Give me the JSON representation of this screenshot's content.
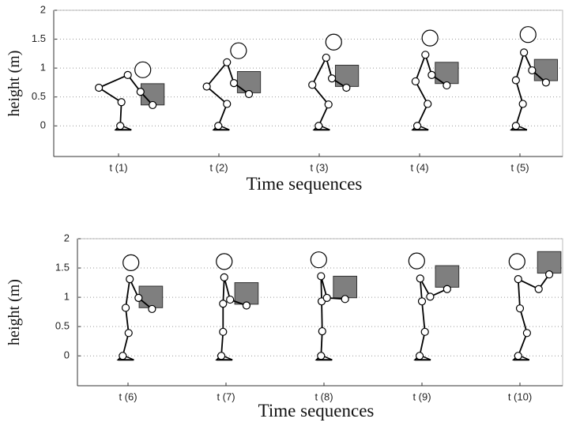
{
  "chart_data": [
    {
      "type": "pose",
      "ylabel": "height (m)",
      "xlabel": "Time sequences",
      "categories": [
        "t (1)",
        "t (2)",
        "t (3)",
        "t (4)",
        "t (5)"
      ],
      "ylim": [
        -0.53,
        2
      ],
      "yticks": [
        0,
        0.5,
        1,
        1.5,
        2
      ],
      "grid": true,
      "figures": [
        {
          "ankle": [
            0.03,
            0
          ],
          "knee": [
            0.05,
            0.41
          ],
          "hip": [
            -0.34,
            0.66
          ],
          "shoulder": [
            0.16,
            0.88
          ],
          "elbow": [
            0.38,
            0.59
          ],
          "hand": [
            0.59,
            0.36
          ],
          "head": [
            0.42,
            0.97
          ],
          "box": [
            0.59,
            0.53
          ]
        },
        {
          "ankle": [
            -0.01,
            0
          ],
          "knee": [
            0.14,
            0.38
          ],
          "hip": [
            -0.21,
            0.68
          ],
          "shoulder": [
            0.14,
            1.1
          ],
          "elbow": [
            0.26,
            0.74
          ],
          "hand": [
            0.52,
            0.55
          ],
          "head": [
            0.34,
            1.3
          ],
          "box": [
            0.52,
            0.74
          ]
        },
        {
          "ankle": [
            -0.01,
            0
          ],
          "knee": [
            0.16,
            0.37
          ],
          "hip": [
            -0.12,
            0.71
          ],
          "shoulder": [
            0.12,
            1.18
          ],
          "elbow": [
            0.22,
            0.82
          ],
          "hand": [
            0.47,
            0.66
          ],
          "head": [
            0.25,
            1.45
          ],
          "box": [
            0.48,
            0.85
          ]
        },
        {
          "ankle": [
            -0.04,
            0
          ],
          "knee": [
            0.14,
            0.38
          ],
          "hip": [
            -0.07,
            0.77
          ],
          "shoulder": [
            0.1,
            1.23
          ],
          "elbow": [
            0.21,
            0.88
          ],
          "hand": [
            0.47,
            0.7
          ],
          "head": [
            0.18,
            1.52
          ],
          "box": [
            0.47,
            0.9
          ]
        },
        {
          "ankle": [
            -0.07,
            0
          ],
          "knee": [
            0.05,
            0.38
          ],
          "hip": [
            -0.07,
            0.79
          ],
          "shoulder": [
            0.07,
            1.27
          ],
          "elbow": [
            0.21,
            0.96
          ],
          "hand": [
            0.45,
            0.75
          ],
          "head": [
            0.14,
            1.58
          ],
          "box": [
            0.45,
            0.95
          ]
        }
      ]
    },
    {
      "type": "pose",
      "ylabel": "height (m)",
      "xlabel": "Time sequences",
      "categories": [
        "t (6)",
        "t (7)",
        "t (8)",
        "t (9)",
        "t (10)"
      ],
      "ylim": [
        -0.51,
        2
      ],
      "yticks": [
        0,
        0.5,
        1,
        1.5,
        2
      ],
      "grid": true,
      "figures": [
        {
          "ankle": [
            -0.09,
            0
          ],
          "knee": [
            0.01,
            0.39
          ],
          "hip": [
            -0.04,
            0.82
          ],
          "shoulder": [
            0.03,
            1.31
          ],
          "elbow": [
            0.18,
            0.99
          ],
          "hand": [
            0.41,
            0.8
          ],
          "head": [
            0.05,
            1.59
          ],
          "box": [
            0.39,
            0.99
          ]
        },
        {
          "ankle": [
            -0.08,
            0
          ],
          "knee": [
            -0.05,
            0.41
          ],
          "hip": [
            -0.05,
            0.89
          ],
          "shoulder": [
            -0.03,
            1.34
          ],
          "elbow": [
            0.07,
            0.96
          ],
          "hand": [
            0.35,
            0.86
          ],
          "head": [
            -0.03,
            1.61
          ],
          "box": [
            0.35,
            1.05
          ]
        },
        {
          "ankle": [
            -0.05,
            0
          ],
          "knee": [
            -0.03,
            0.42
          ],
          "hip": [
            -0.04,
            0.93
          ],
          "shoulder": [
            -0.05,
            1.36
          ],
          "elbow": [
            0.05,
            0.99
          ],
          "hand": [
            0.36,
            0.97
          ],
          "head": [
            -0.09,
            1.64
          ],
          "box": [
            0.36,
            1.16
          ]
        },
        {
          "ankle": [
            -0.04,
            0
          ],
          "knee": [
            0.05,
            0.41
          ],
          "hip": [
            0,
            0.93
          ],
          "shoulder": [
            -0.03,
            1.32
          ],
          "elbow": [
            0.14,
            1.01
          ],
          "hand": [
            0.43,
            1.14
          ],
          "head": [
            -0.09,
            1.62
          ],
          "box": [
            0.43,
            1.34
          ]
        },
        {
          "ankle": [
            -0.03,
            0
          ],
          "knee": [
            0.12,
            0.39
          ],
          "hip": [
            0,
            0.81
          ],
          "shoulder": [
            -0.03,
            1.31
          ],
          "elbow": [
            0.32,
            1.14
          ],
          "hand": [
            0.5,
            1.39
          ],
          "head": [
            -0.05,
            1.61
          ],
          "box": [
            0.5,
            1.58
          ]
        }
      ]
    }
  ]
}
